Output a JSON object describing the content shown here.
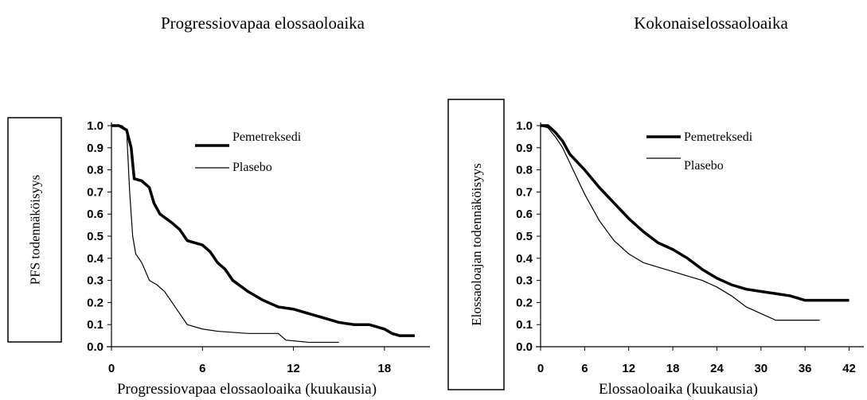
{
  "chart_data": [
    {
      "type": "line",
      "title": "Progressiovapaa elossaoloaika",
      "ylabel": "PFS todennäköisyys",
      "xlabel": "Progressiovapaa elossaoloaika (kuukausia)",
      "xlim": [
        0,
        21
      ],
      "xticks": [
        0,
        6,
        12,
        18
      ],
      "ylim": [
        0,
        1
      ],
      "yticks": [
        {
          "value": 0,
          "label": "0.0"
        },
        0.1,
        0.2,
        0.3,
        0.4,
        0.5,
        0.6,
        0.7,
        0.8,
        0.9,
        {
          "value": 1,
          "label": "1.0"
        }
      ],
      "series": [
        {
          "name": "Pemetreksedi",
          "color": "#000000",
          "line_width": 3.5,
          "x": [
            0,
            0.5,
            1,
            1.3,
            1.5,
            2,
            2.5,
            2.8,
            3.2,
            4,
            4.5,
            5,
            6,
            6.5,
            7,
            7.5,
            8,
            9,
            10,
            11,
            12,
            13,
            14,
            15,
            16,
            17,
            18,
            18.5,
            19,
            20
          ],
          "values": [
            1.0,
            1.0,
            0.98,
            0.9,
            0.76,
            0.75,
            0.72,
            0.65,
            0.6,
            0.56,
            0.53,
            0.48,
            0.46,
            0.43,
            0.38,
            0.35,
            0.3,
            0.25,
            0.21,
            0.18,
            0.17,
            0.15,
            0.13,
            0.11,
            0.1,
            0.1,
            0.08,
            0.06,
            0.05,
            0.05
          ]
        },
        {
          "name": "Plasebo",
          "color": "#000000",
          "line_width": 1.2,
          "x": [
            0,
            0.7,
            1.0,
            1.2,
            1.4,
            1.6,
            2,
            2.5,
            3,
            3.5,
            4,
            4.5,
            5,
            6,
            7,
            9,
            11,
            11.5,
            13,
            15
          ],
          "values": [
            1.0,
            1.0,
            0.98,
            0.7,
            0.5,
            0.42,
            0.38,
            0.3,
            0.28,
            0.25,
            0.2,
            0.15,
            0.1,
            0.08,
            0.07,
            0.06,
            0.06,
            0.03,
            0.02,
            0.02
          ]
        }
      ]
    },
    {
      "type": "line",
      "title": "Kokonaiselossaoloaika",
      "ylabel": "Elossaoloajan todennäköisyys",
      "xlabel": "Elossaoloaika (kuukausia)",
      "xlim": [
        0,
        44
      ],
      "xticks": [
        0,
        6,
        12,
        18,
        24,
        30,
        36,
        42
      ],
      "ylim": [
        0,
        1
      ],
      "yticks": [
        {
          "value": 0,
          "label": "0.0"
        },
        0.1,
        0.2,
        0.3,
        0.4,
        0.5,
        0.6,
        0.7,
        0.8,
        0.9,
        {
          "value": 1,
          "label": "1.0"
        }
      ],
      "series": [
        {
          "name": "Pemetreksedi",
          "color": "#000000",
          "line_width": 3.5,
          "x": [
            0,
            1,
            2,
            3,
            4,
            6,
            8,
            10,
            12,
            14,
            16,
            18,
            20,
            22,
            24,
            26,
            28,
            30,
            32,
            34,
            36,
            38,
            42
          ],
          "values": [
            1.0,
            1.0,
            0.97,
            0.93,
            0.87,
            0.8,
            0.72,
            0.65,
            0.58,
            0.52,
            0.47,
            0.44,
            0.4,
            0.35,
            0.31,
            0.28,
            0.26,
            0.25,
            0.24,
            0.23,
            0.21,
            0.21,
            0.21
          ]
        },
        {
          "name": "Plasebo",
          "color": "#000000",
          "line_width": 1.2,
          "x": [
            0,
            1,
            2,
            3,
            4,
            6,
            8,
            10,
            12,
            14,
            16,
            18,
            20,
            22,
            24,
            26,
            28,
            30,
            32,
            34,
            38
          ],
          "values": [
            1.0,
            0.99,
            0.95,
            0.9,
            0.83,
            0.69,
            0.57,
            0.48,
            0.42,
            0.38,
            0.36,
            0.34,
            0.32,
            0.3,
            0.27,
            0.23,
            0.18,
            0.15,
            0.12,
            0.12,
            0.12
          ]
        }
      ]
    }
  ]
}
